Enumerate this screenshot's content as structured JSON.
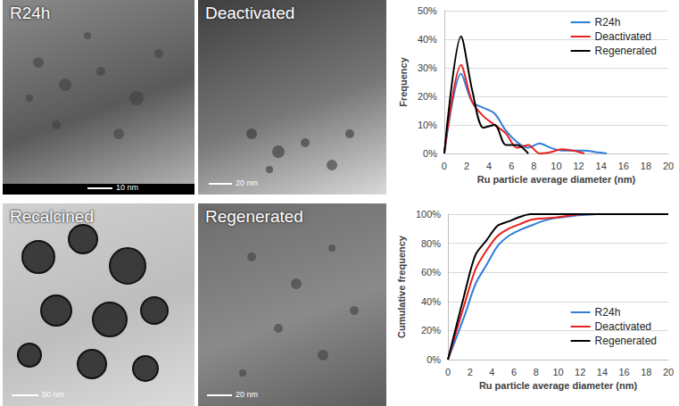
{
  "panels": [
    {
      "label": "R24h",
      "scale_bar": "10 nm"
    },
    {
      "label": "Deactivated",
      "scale_bar": "20 nm"
    },
    {
      "label": "Recalcined",
      "scale_bar": "50 nm"
    },
    {
      "label": "Regenerated",
      "scale_bar": "20 nm"
    }
  ],
  "chart_data": [
    {
      "type": "line",
      "y_label": "Frequency",
      "x_label": "Ru particle average diameter (nm)",
      "x": [
        0,
        1.5,
        2.5,
        3.5,
        4.5,
        5.5,
        6.5,
        7.5,
        8.5,
        9.5,
        10.5,
        11.5,
        12.5,
        13.5,
        14.5,
        20
      ],
      "xlim": [
        0,
        20
      ],
      "xticks": [
        0,
        2,
        4,
        6,
        8,
        10,
        12,
        14,
        16,
        18,
        20
      ],
      "ylim": [
        0,
        50
      ],
      "yticks": [
        {
          "value": 0,
          "label": "0%"
        },
        {
          "value": 10,
          "label": "10%"
        },
        {
          "value": 20,
          "label": "20%"
        },
        {
          "value": 30,
          "label": "30%"
        },
        {
          "value": 40,
          "label": "40%"
        },
        {
          "value": 50,
          "label": "50%"
        }
      ],
      "grid": true,
      "legend": "upper right",
      "series": [
        {
          "name": "R24h",
          "color": "#2f7ed8",
          "values": [
            0,
            28,
            18,
            16,
            14,
            8,
            4,
            2,
            3.5,
            2,
            1,
            1,
            1,
            0.5,
            0,
            null
          ]
        },
        {
          "name": "Deactivated",
          "color": "#e8201f",
          "values": [
            0,
            31,
            18,
            13,
            10,
            7,
            2,
            3,
            0,
            0.5,
            1.5,
            1,
            0,
            null,
            null,
            null
          ]
        },
        {
          "name": "Regenerated",
          "color": "#000000",
          "values": [
            0,
            41,
            22,
            9,
            10,
            3,
            3,
            0,
            null,
            null,
            null,
            null,
            null,
            null,
            null,
            null
          ]
        }
      ]
    },
    {
      "type": "line",
      "y_label": "Cumulative frequency",
      "x_label": "Ru particle average diameter (nm)",
      "x": [
        0,
        1.5,
        2.5,
        3.5,
        4.5,
        5.5,
        6.5,
        7.5,
        8.5,
        9.5,
        10.5,
        11.5,
        12.5,
        13.5,
        14.5,
        20
      ],
      "xlim": [
        0,
        20
      ],
      "xticks": [
        0,
        2,
        4,
        6,
        8,
        10,
        12,
        14,
        16,
        18,
        20
      ],
      "ylim": [
        0,
        100
      ],
      "yticks": [
        {
          "value": 0,
          "label": "0%"
        },
        {
          "value": 20,
          "label": "20%"
        },
        {
          "value": 40,
          "label": "40%"
        },
        {
          "value": 60,
          "label": "60%"
        },
        {
          "value": 80,
          "label": "80%"
        },
        {
          "value": 100,
          "label": "100%"
        }
      ],
      "grid": true,
      "legend": "lower right",
      "series": [
        {
          "name": "R24h",
          "color": "#2f7ed8",
          "values": [
            0,
            30,
            52,
            65,
            78,
            85,
            89,
            92,
            95,
            97,
            98,
            99,
            99.5,
            100,
            100,
            100
          ]
        },
        {
          "name": "Deactivated",
          "color": "#e8201f",
          "values": [
            0,
            38,
            62,
            75,
            85,
            90,
            93,
            96,
            97,
            97.5,
            98.5,
            99.5,
            100,
            100,
            100,
            100
          ]
        },
        {
          "name": "Regenerated",
          "color": "#000000",
          "values": [
            0,
            45,
            72,
            82,
            92,
            95,
            98,
            100,
            100,
            100,
            100,
            100,
            100,
            100,
            100,
            100
          ]
        }
      ]
    }
  ]
}
